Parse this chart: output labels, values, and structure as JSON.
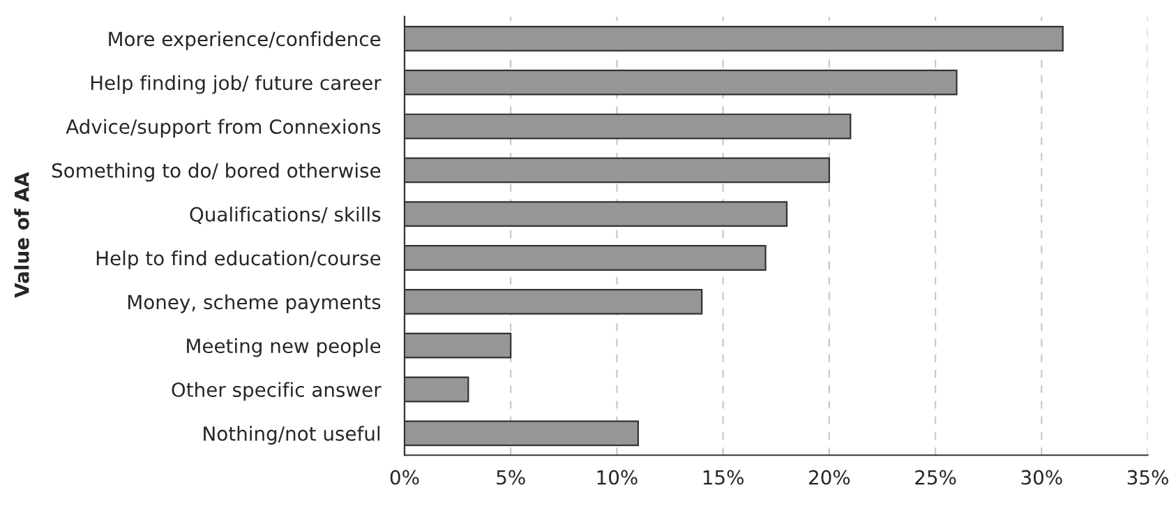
{
  "chart_data": {
    "type": "bar",
    "orientation": "horizontal",
    "ylabel": "Value of AA",
    "categories": [
      "More experience/confidence",
      "Help finding job/ future career",
      "Advice/support from Connexions",
      "Something to do/ bored otherwise",
      "Qualifications/ skills",
      "Help to find education/course",
      "Money, scheme payments",
      "Meeting new people",
      "Other specific answer",
      "Nothing/not useful"
    ],
    "values": [
      31,
      26,
      21,
      20,
      18,
      17,
      14,
      5,
      3,
      11
    ],
    "color": "#969696",
    "xlim": [
      0,
      35
    ],
    "xticks": [
      {
        "value": 0,
        "label": "0%"
      },
      {
        "value": 5,
        "label": "5%"
      },
      {
        "value": 10,
        "label": "10%"
      },
      {
        "value": 15,
        "label": "15%"
      },
      {
        "value": 20,
        "label": "20%"
      },
      {
        "value": 25,
        "label": "25%"
      },
      {
        "value": 30,
        "label": "30%"
      },
      {
        "value": 35,
        "label": "35%"
      }
    ],
    "grid": "x",
    "legend": false
  }
}
